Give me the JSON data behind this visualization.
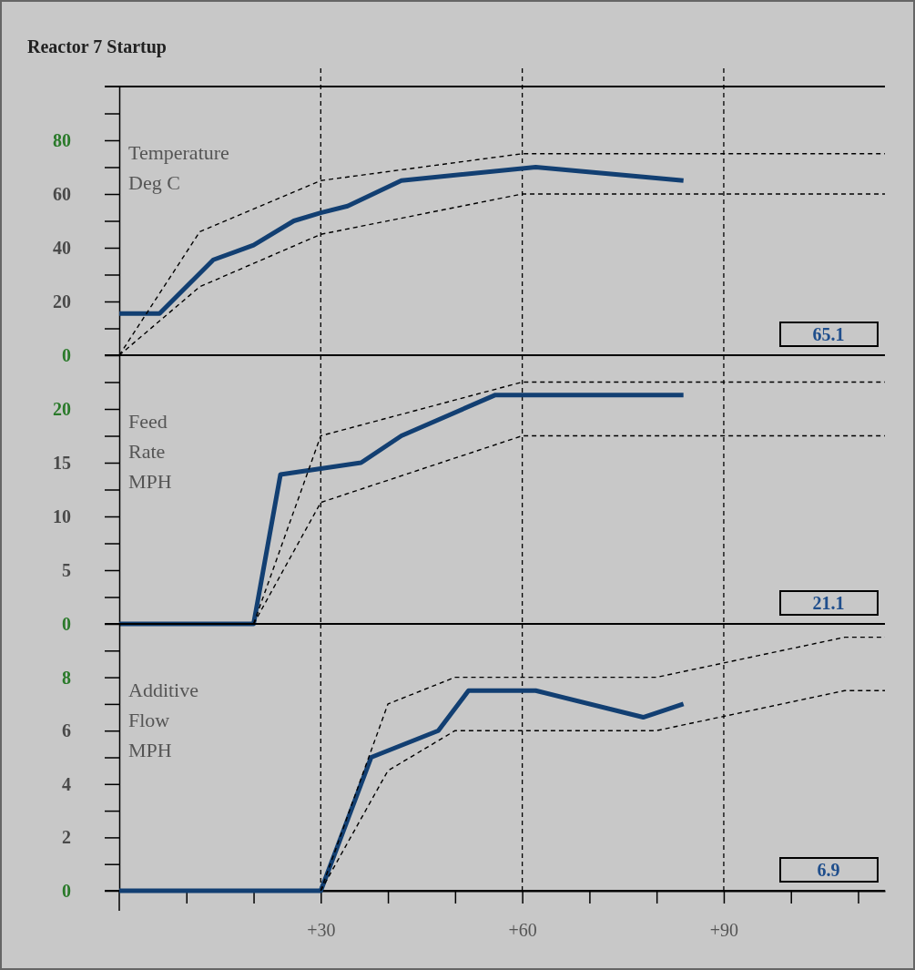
{
  "chart_data": [
    {
      "type": "line",
      "title": "Reactor 7 Startup",
      "ylabel": "Temperature\nDeg C",
      "xlim": [
        0,
        114
      ],
      "ylim": [
        0,
        100
      ],
      "yticks": [
        0,
        {
          "value": 10,
          "label": null
        },
        20,
        {
          "value": 30,
          "label": null
        },
        40,
        {
          "value": 50,
          "label": null
        },
        60,
        {
          "value": 70,
          "label": null
        },
        80,
        {
          "value": 90,
          "label": null
        }
      ],
      "tick_labels": "y",
      "ref_lines": [
        {
          "axis": "x",
          "value": 30,
          "line_style": "dashed"
        },
        {
          "axis": "x",
          "value": 60,
          "line_style": "dashed"
        },
        {
          "axis": "x",
          "value": 90,
          "line_style": "dashed"
        }
      ],
      "annotations": [
        "65.1"
      ],
      "series": [
        {
          "color": "#123f72",
          "line_style": "solid",
          "x": [
            0,
            6,
            14,
            20,
            26,
            30,
            34,
            42,
            62,
            84
          ],
          "values": [
            15.5,
            15.5,
            35.5,
            41,
            50,
            53,
            55.5,
            65,
            70,
            65
          ]
        },
        {
          "color": "#000000",
          "line_style": "dashed",
          "x": [
            0,
            12,
            30,
            60,
            114
          ],
          "values": [
            0,
            46,
            65,
            75,
            75
          ]
        },
        {
          "color": "#000000",
          "line_style": "dashed",
          "x": [
            0,
            12,
            30,
            60,
            114
          ],
          "values": [
            0,
            25.5,
            45,
            60,
            60
          ]
        }
      ]
    },
    {
      "type": "line",
      "ylabel": "Feed\nRate\nMPH",
      "xlim": [
        0,
        114
      ],
      "ylim": [
        0,
        25
      ],
      "yticks": [
        0,
        {
          "value": 2.5,
          "label": null
        },
        5,
        {
          "value": 7.5,
          "label": null
        },
        10,
        {
          "value": 12.5,
          "label": null
        },
        15,
        {
          "value": 17.5,
          "label": null
        },
        20,
        {
          "value": 22.5,
          "label": null
        }
      ],
      "tick_labels": "y",
      "ref_lines": [
        {
          "axis": "x",
          "value": 30,
          "line_style": "dashed"
        },
        {
          "axis": "x",
          "value": 60,
          "line_style": "dashed"
        },
        {
          "axis": "x",
          "value": 90,
          "line_style": "dashed"
        }
      ],
      "annotations": [
        "21.1"
      ],
      "series": [
        {
          "color": "#123f72",
          "line_style": "solid",
          "x": [
            0,
            20,
            24,
            36,
            42,
            56,
            84
          ],
          "values": [
            0,
            0,
            13.9,
            15,
            17.5,
            21.3,
            21.3
          ]
        },
        {
          "color": "#000000",
          "line_style": "dashed",
          "x": [
            20,
            30,
            60,
            114
          ],
          "values": [
            0,
            17.5,
            22.5,
            22.5
          ]
        },
        {
          "color": "#000000",
          "line_style": "dashed",
          "x": [
            20,
            30,
            60,
            114
          ],
          "values": [
            0,
            11.3,
            17.5,
            17.5
          ]
        }
      ]
    },
    {
      "type": "line",
      "ylabel": "Additive\nFlow\nMPH",
      "xlim": [
        0,
        114
      ],
      "ylim": [
        0,
        10
      ],
      "xticks": [
        {
          "value": 10,
          "label": null
        },
        {
          "value": 20,
          "label": null
        },
        {
          "value": 30,
          "label": "+30"
        },
        {
          "value": 40,
          "label": null
        },
        {
          "value": 50,
          "label": null
        },
        {
          "value": 60,
          "label": "+60"
        },
        {
          "value": 70,
          "label": null
        },
        {
          "value": 80,
          "label": null
        },
        {
          "value": 90,
          "label": "+90"
        },
        {
          "value": 100,
          "label": null
        },
        {
          "value": 110,
          "label": null
        }
      ],
      "yticks": [
        0,
        {
          "value": 1,
          "label": null
        },
        2,
        {
          "value": 3,
          "label": null
        },
        4,
        {
          "value": 5,
          "label": null
        },
        6,
        {
          "value": 7,
          "label": null
        },
        8,
        {
          "value": 9,
          "label": null
        }
      ],
      "ref_lines": [
        {
          "axis": "x",
          "value": 30,
          "line_style": "dashed"
        },
        {
          "axis": "x",
          "value": 60,
          "line_style": "dashed"
        },
        {
          "axis": "x",
          "value": 90,
          "line_style": "dashed"
        }
      ],
      "annotations": [
        "6.9"
      ],
      "series": [
        {
          "color": "#123f72",
          "line_style": "solid",
          "x": [
            0,
            30,
            37.5,
            47.5,
            52,
            62,
            78,
            84
          ],
          "values": [
            0,
            0,
            5,
            6,
            7.5,
            7.5,
            6.5,
            7
          ]
        },
        {
          "color": "#000000",
          "line_style": "dashed",
          "x": [
            30,
            40,
            50,
            80,
            108,
            114
          ],
          "values": [
            0,
            7,
            8,
            8,
            9.5,
            9.5
          ]
        },
        {
          "color": "#000000",
          "line_style": "dashed",
          "x": [
            30,
            40,
            50,
            80,
            108,
            114
          ],
          "values": [
            0,
            4.5,
            6,
            6,
            7.5,
            7.5
          ]
        }
      ]
    }
  ]
}
